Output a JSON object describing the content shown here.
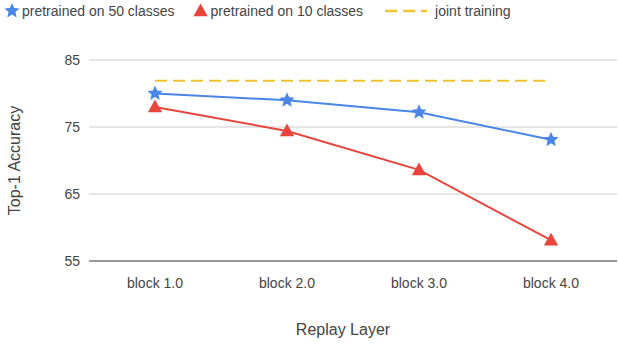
{
  "chart_data": {
    "type": "line",
    "categories": [
      "block 1.0",
      "block 2.0",
      "block 3.0",
      "block 4.0"
    ],
    "series": [
      {
        "name": "pretrained on 50 classes",
        "color": "#4a86e8",
        "marker": "star",
        "line_style": "solid",
        "values": [
          80.0,
          79.0,
          77.2,
          73.1
        ]
      },
      {
        "name": "pretrained on 10 classes",
        "color": "#e8453c",
        "marker": "triangle",
        "line_style": "solid",
        "values": [
          78.0,
          74.4,
          68.6,
          58.1
        ]
      },
      {
        "name": "joint training",
        "color": "#f1c232",
        "marker": "none",
        "line_style": "dashed",
        "values": [
          81.9,
          81.9,
          81.9,
          81.9
        ]
      }
    ],
    "x_label": "Replay Layer",
    "y_label": "Top-1 Accuracy",
    "ylim": [
      55,
      85
    ],
    "yticks": [
      55,
      65,
      75,
      85
    ],
    "grid": true,
    "legend": "top"
  }
}
